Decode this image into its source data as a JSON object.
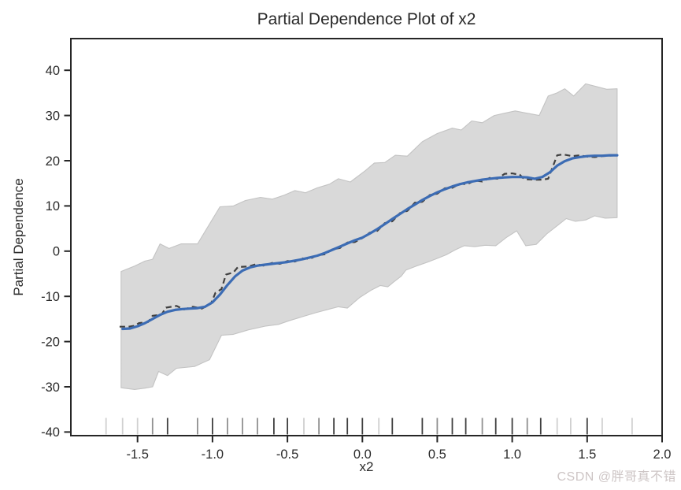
{
  "chart_data": {
    "type": "line",
    "title": "Partial Dependence Plot of x2",
    "xlabel": "x2",
    "ylabel": "Partial Dependence",
    "xlim": [
      -1.945,
      2.0
    ],
    "ylim": [
      -40.8,
      47.0
    ],
    "grid": false,
    "x_ticks": [
      -1.5,
      -1.0,
      -0.5,
      0.0,
      0.5,
      1.0,
      1.5,
      2.0
    ],
    "x_tick_labels": [
      "-1.5",
      "-1.0",
      "-0.5",
      "0.0",
      "0.5",
      "1.0",
      "1.5",
      "2.0"
    ],
    "y_ticks": [
      40,
      30,
      20,
      10,
      0,
      -10,
      -20,
      -30,
      -40
    ],
    "y_tick_labels": [
      "40",
      "30",
      "20",
      "10",
      "0",
      "-10",
      "-20",
      "-30",
      "-40"
    ],
    "series": [
      {
        "name": "smoothed-partial-dependence",
        "style": "solid",
        "color": "#3c6cb4",
        "points": [
          [
            -1.6,
            -17.2
          ],
          [
            -1.55,
            -17.1
          ],
          [
            -1.5,
            -16.6
          ],
          [
            -1.45,
            -15.9
          ],
          [
            -1.4,
            -15.0
          ],
          [
            -1.35,
            -14.1
          ],
          [
            -1.3,
            -13.4
          ],
          [
            -1.25,
            -13.0
          ],
          [
            -1.2,
            -12.8
          ],
          [
            -1.15,
            -12.7
          ],
          [
            -1.1,
            -12.6
          ],
          [
            -1.05,
            -12.3
          ],
          [
            -1.0,
            -11.3
          ],
          [
            -0.95,
            -9.6
          ],
          [
            -0.9,
            -7.5
          ],
          [
            -0.85,
            -5.6
          ],
          [
            -0.8,
            -4.3
          ],
          [
            -0.75,
            -3.6
          ],
          [
            -0.7,
            -3.2
          ],
          [
            -0.65,
            -3.0
          ],
          [
            -0.6,
            -2.8
          ],
          [
            -0.55,
            -2.6
          ],
          [
            -0.5,
            -2.4
          ],
          [
            -0.45,
            -2.1
          ],
          [
            -0.4,
            -1.8
          ],
          [
            -0.35,
            -1.4
          ],
          [
            -0.3,
            -1.0
          ],
          [
            -0.25,
            -0.4
          ],
          [
            -0.2,
            0.3
          ],
          [
            -0.15,
            1.0
          ],
          [
            -0.1,
            1.7
          ],
          [
            -0.05,
            2.4
          ],
          [
            0.0,
            3.0
          ],
          [
            0.05,
            3.9
          ],
          [
            0.1,
            4.9
          ],
          [
            0.15,
            6.0
          ],
          [
            0.2,
            7.1
          ],
          [
            0.25,
            8.2
          ],
          [
            0.3,
            9.3
          ],
          [
            0.35,
            10.3
          ],
          [
            0.4,
            11.3
          ],
          [
            0.45,
            12.2
          ],
          [
            0.5,
            13.0
          ],
          [
            0.55,
            13.7
          ],
          [
            0.6,
            14.3
          ],
          [
            0.65,
            14.8
          ],
          [
            0.7,
            15.2
          ],
          [
            0.75,
            15.5
          ],
          [
            0.8,
            15.8
          ],
          [
            0.85,
            16.0
          ],
          [
            0.9,
            16.2
          ],
          [
            0.95,
            16.3
          ],
          [
            1.0,
            16.4
          ],
          [
            1.05,
            16.4
          ],
          [
            1.1,
            16.3
          ],
          [
            1.15,
            16.0
          ],
          [
            1.2,
            16.4
          ],
          [
            1.25,
            17.4
          ],
          [
            1.3,
            18.9
          ],
          [
            1.35,
            19.9
          ],
          [
            1.4,
            20.5
          ],
          [
            1.45,
            20.8
          ],
          [
            1.5,
            21.0
          ],
          [
            1.55,
            21.1
          ],
          [
            1.6,
            21.1
          ],
          [
            1.65,
            21.2
          ],
          [
            1.7,
            21.2
          ]
        ]
      },
      {
        "name": "raw-partial-dependence",
        "style": "dashed",
        "color": "#404040",
        "points": [
          [
            -1.62,
            -16.7
          ],
          [
            -1.56,
            -16.7
          ],
          [
            -1.52,
            -16.5
          ],
          [
            -1.49,
            -15.9
          ],
          [
            -1.43,
            -15.7
          ],
          [
            -1.4,
            -14.3
          ],
          [
            -1.34,
            -14.0
          ],
          [
            -1.31,
            -12.5
          ],
          [
            -1.24,
            -12.1
          ],
          [
            -1.19,
            -12.9
          ],
          [
            -1.13,
            -12.3
          ],
          [
            -1.07,
            -12.7
          ],
          [
            -1.01,
            -11.6
          ],
          [
            -0.98,
            -9.2
          ],
          [
            -0.94,
            -8.4
          ],
          [
            -0.91,
            -5.2
          ],
          [
            -0.86,
            -4.7
          ],
          [
            -0.83,
            -3.5
          ],
          [
            -0.76,
            -3.4
          ],
          [
            -0.71,
            -2.9
          ],
          [
            -0.66,
            -3.2
          ],
          [
            -0.6,
            -2.6
          ],
          [
            -0.55,
            -2.8
          ],
          [
            -0.5,
            -2.2
          ],
          [
            -0.45,
            -2.3
          ],
          [
            -0.4,
            -1.6
          ],
          [
            -0.35,
            -1.7
          ],
          [
            -0.3,
            -0.9
          ],
          [
            -0.25,
            -0.7
          ],
          [
            -0.2,
            0.4
          ],
          [
            -0.15,
            0.7
          ],
          [
            -0.1,
            1.9
          ],
          [
            -0.05,
            2.0
          ],
          [
            0.0,
            2.9
          ],
          [
            0.05,
            4.1
          ],
          [
            0.1,
            4.5
          ],
          [
            0.15,
            6.2
          ],
          [
            0.2,
            6.6
          ],
          [
            0.25,
            8.4
          ],
          [
            0.3,
            8.9
          ],
          [
            0.35,
            10.7
          ],
          [
            0.4,
            10.9
          ],
          [
            0.45,
            12.4
          ],
          [
            0.5,
            12.7
          ],
          [
            0.55,
            13.9
          ],
          [
            0.6,
            14.0
          ],
          [
            0.65,
            14.9
          ],
          [
            0.7,
            14.8
          ],
          [
            0.75,
            15.6
          ],
          [
            0.8,
            15.4
          ],
          [
            0.85,
            16.2
          ],
          [
            0.9,
            16.0
          ],
          [
            0.95,
            17.1
          ],
          [
            1.0,
            17.2
          ],
          [
            1.05,
            16.9
          ],
          [
            1.08,
            15.9
          ],
          [
            1.15,
            15.8
          ],
          [
            1.2,
            15.8
          ],
          [
            1.24,
            16.0
          ],
          [
            1.27,
            18.6
          ],
          [
            1.3,
            21.2
          ],
          [
            1.34,
            21.4
          ],
          [
            1.4,
            21.0
          ],
          [
            1.45,
            21.2
          ],
          [
            1.5,
            20.9
          ],
          [
            1.55,
            20.8
          ],
          [
            1.6,
            21.0
          ],
          [
            1.65,
            21.1
          ],
          [
            1.7,
            21.2
          ]
        ]
      }
    ],
    "confidence_band": {
      "fill_color": "#d9d9d9",
      "edge_color": "#c3c3c3",
      "upper": [
        [
          -1.61,
          -4.5
        ],
        [
          -1.52,
          -3.3
        ],
        [
          -1.45,
          -2.2
        ],
        [
          -1.4,
          -1.8
        ],
        [
          -1.35,
          1.6
        ],
        [
          -1.29,
          0.6
        ],
        [
          -1.21,
          1.6
        ],
        [
          -1.1,
          1.6
        ],
        [
          -0.95,
          9.8
        ],
        [
          -0.86,
          10.0
        ],
        [
          -0.78,
          11.2
        ],
        [
          -0.68,
          11.9
        ],
        [
          -0.6,
          11.5
        ],
        [
          -0.52,
          12.4
        ],
        [
          -0.45,
          13.4
        ],
        [
          -0.38,
          12.9
        ],
        [
          -0.3,
          14.0
        ],
        [
          -0.22,
          14.8
        ],
        [
          -0.16,
          16.0
        ],
        [
          -0.08,
          15.3
        ],
        [
          0.02,
          17.8
        ],
        [
          0.08,
          19.5
        ],
        [
          0.15,
          19.6
        ],
        [
          0.22,
          21.2
        ],
        [
          0.3,
          21.0
        ],
        [
          0.4,
          24.2
        ],
        [
          0.5,
          26.0
        ],
        [
          0.6,
          27.2
        ],
        [
          0.66,
          26.8
        ],
        [
          0.73,
          28.8
        ],
        [
          0.8,
          28.4
        ],
        [
          0.88,
          30.0
        ],
        [
          0.95,
          30.5
        ],
        [
          1.02,
          31.0
        ],
        [
          1.08,
          30.6
        ],
        [
          1.18,
          30.0
        ],
        [
          1.24,
          34.3
        ],
        [
          1.3,
          35.0
        ],
        [
          1.35,
          35.9
        ],
        [
          1.41,
          34.3
        ],
        [
          1.49,
          37.0
        ],
        [
          1.56,
          36.4
        ],
        [
          1.63,
          35.8
        ],
        [
          1.7,
          35.9
        ]
      ],
      "lower": [
        [
          -1.61,
          -30.2
        ],
        [
          -1.52,
          -30.6
        ],
        [
          -1.45,
          -30.3
        ],
        [
          -1.4,
          -30.0
        ],
        [
          -1.36,
          -26.6
        ],
        [
          -1.3,
          -27.5
        ],
        [
          -1.24,
          -25.9
        ],
        [
          -1.12,
          -25.5
        ],
        [
          -1.02,
          -24.0
        ],
        [
          -0.94,
          -18.6
        ],
        [
          -0.86,
          -18.4
        ],
        [
          -0.76,
          -17.4
        ],
        [
          -0.65,
          -16.6
        ],
        [
          -0.56,
          -16.2
        ],
        [
          -0.49,
          -15.4
        ],
        [
          -0.4,
          -14.5
        ],
        [
          -0.31,
          -13.6
        ],
        [
          -0.22,
          -12.8
        ],
        [
          -0.16,
          -12.3
        ],
        [
          -0.1,
          -12.6
        ],
        [
          -0.02,
          -10.3
        ],
        [
          0.06,
          -8.6
        ],
        [
          0.12,
          -7.6
        ],
        [
          0.17,
          -7.9
        ],
        [
          0.21,
          -6.8
        ],
        [
          0.26,
          -5.5
        ],
        [
          0.29,
          -4.2
        ],
        [
          0.36,
          -3.3
        ],
        [
          0.43,
          -2.5
        ],
        [
          0.5,
          -1.6
        ],
        [
          0.56,
          -0.8
        ],
        [
          0.62,
          0.3
        ],
        [
          0.68,
          1.2
        ],
        [
          0.75,
          1.0
        ],
        [
          0.82,
          1.3
        ],
        [
          0.89,
          1.2
        ],
        [
          0.96,
          3.0
        ],
        [
          1.03,
          4.5
        ],
        [
          1.09,
          1.2
        ],
        [
          1.16,
          1.5
        ],
        [
          1.23,
          3.8
        ],
        [
          1.3,
          5.6
        ],
        [
          1.36,
          7.2
        ],
        [
          1.42,
          6.6
        ],
        [
          1.49,
          6.9
        ],
        [
          1.55,
          7.8
        ],
        [
          1.62,
          7.3
        ],
        [
          1.7,
          7.4
        ]
      ]
    },
    "rug": {
      "shade_colors": {
        "dark": "#3f3f3f",
        "medium": "#909090",
        "light": "#d0d0d0"
      },
      "marks": [
        {
          "x": -1.71,
          "shade": "light"
        },
        {
          "x": -1.6,
          "shade": "light"
        },
        {
          "x": -1.5,
          "shade": "light"
        },
        {
          "x": -1.4,
          "shade": "medium"
        },
        {
          "x": -1.3,
          "shade": "dark"
        },
        {
          "x": -1.1,
          "shade": "medium"
        },
        {
          "x": -1.0,
          "shade": "dark"
        },
        {
          "x": -0.9,
          "shade": "medium"
        },
        {
          "x": -0.8,
          "shade": "medium"
        },
        {
          "x": -0.7,
          "shade": "medium"
        },
        {
          "x": -0.59,
          "shade": "dark"
        },
        {
          "x": -0.5,
          "shade": "dark"
        },
        {
          "x": -0.39,
          "shade": "light"
        },
        {
          "x": -0.29,
          "shade": "medium"
        },
        {
          "x": -0.19,
          "shade": "dark"
        },
        {
          "x": -0.1,
          "shade": "dark"
        },
        {
          "x": 0.0,
          "shade": "dark"
        },
        {
          "x": 0.11,
          "shade": "light"
        },
        {
          "x": 0.2,
          "shade": "dark"
        },
        {
          "x": 0.4,
          "shade": "dark"
        },
        {
          "x": 0.5,
          "shade": "medium"
        },
        {
          "x": 0.6,
          "shade": "dark"
        },
        {
          "x": 0.69,
          "shade": "dark"
        },
        {
          "x": 0.8,
          "shade": "medium"
        },
        {
          "x": 0.89,
          "shade": "dark"
        },
        {
          "x": 1.0,
          "shade": "dark"
        },
        {
          "x": 1.1,
          "shade": "medium"
        },
        {
          "x": 1.19,
          "shade": "dark"
        },
        {
          "x": 1.3,
          "shade": "light"
        },
        {
          "x": 1.39,
          "shade": "light"
        },
        {
          "x": 1.5,
          "shade": "dark"
        },
        {
          "x": 1.6,
          "shade": "light"
        },
        {
          "x": 1.8,
          "shade": "light"
        },
        {
          "x": 2.0,
          "shade": "light"
        }
      ]
    },
    "colors": {
      "spine": "#262626",
      "tick": "#262626",
      "tick_label": "#2a2a2a",
      "background": "#ffffff"
    }
  },
  "watermark": {
    "text": "CSDN @胖哥真不错",
    "color": "#cdc5c5"
  }
}
